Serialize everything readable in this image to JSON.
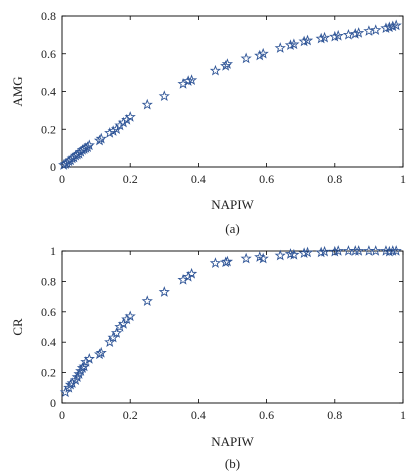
{
  "marker_color": "#2f5597",
  "chart_data": [
    {
      "type": "scatter",
      "marker": "star",
      "xlabel": "NAPIW",
      "ylabel": "AMG",
      "caption": "(a)",
      "xlim": [
        0,
        1
      ],
      "ylim": [
        0,
        0.8
      ],
      "xticks": [
        0,
        0.2,
        0.4,
        0.6,
        0.8,
        1
      ],
      "yticks": [
        0,
        0.2,
        0.4,
        0.6,
        0.8
      ],
      "xtick_labels": [
        "0",
        "0.2",
        "0.4",
        "0.6",
        "0.8",
        "1"
      ],
      "ytick_labels": [
        "0",
        "0.2",
        "0.4",
        "0.6",
        "0.8"
      ],
      "points": [
        [
          0.005,
          0.01
        ],
        [
          0.01,
          0.015
        ],
        [
          0.015,
          0.02
        ],
        [
          0.02,
          0.03
        ],
        [
          0.025,
          0.035
        ],
        [
          0.03,
          0.045
        ],
        [
          0.035,
          0.05
        ],
        [
          0.04,
          0.06
        ],
        [
          0.045,
          0.065
        ],
        [
          0.05,
          0.07
        ],
        [
          0.055,
          0.08
        ],
        [
          0.06,
          0.09
        ],
        [
          0.065,
          0.095
        ],
        [
          0.07,
          0.1
        ],
        [
          0.075,
          0.105
        ],
        [
          0.08,
          0.115
        ],
        [
          0.11,
          0.14
        ],
        [
          0.115,
          0.15
        ],
        [
          0.14,
          0.18
        ],
        [
          0.15,
          0.19
        ],
        [
          0.16,
          0.2
        ],
        [
          0.17,
          0.22
        ],
        [
          0.18,
          0.235
        ],
        [
          0.19,
          0.25
        ],
        [
          0.2,
          0.265
        ],
        [
          0.25,
          0.33
        ],
        [
          0.3,
          0.375
        ],
        [
          0.355,
          0.44
        ],
        [
          0.37,
          0.455
        ],
        [
          0.38,
          0.46
        ],
        [
          0.45,
          0.51
        ],
        [
          0.48,
          0.535
        ],
        [
          0.485,
          0.545
        ],
        [
          0.54,
          0.575
        ],
        [
          0.58,
          0.59
        ],
        [
          0.59,
          0.6
        ],
        [
          0.64,
          0.63
        ],
        [
          0.67,
          0.645
        ],
        [
          0.68,
          0.65
        ],
        [
          0.71,
          0.665
        ],
        [
          0.72,
          0.67
        ],
        [
          0.76,
          0.68
        ],
        [
          0.77,
          0.685
        ],
        [
          0.8,
          0.69
        ],
        [
          0.81,
          0.695
        ],
        [
          0.84,
          0.7
        ],
        [
          0.86,
          0.705
        ],
        [
          0.87,
          0.71
        ],
        [
          0.9,
          0.72
        ],
        [
          0.92,
          0.725
        ],
        [
          0.95,
          0.735
        ],
        [
          0.96,
          0.74
        ],
        [
          0.97,
          0.745
        ],
        [
          0.98,
          0.75
        ]
      ]
    },
    {
      "type": "scatter",
      "marker": "star",
      "xlabel": "NAPIW",
      "ylabel": "CR",
      "caption": "(b)",
      "xlim": [
        0,
        1
      ],
      "ylim": [
        0,
        1
      ],
      "xticks": [
        0,
        0.2,
        0.4,
        0.6,
        0.8,
        1
      ],
      "yticks": [
        0,
        0.2,
        0.4,
        0.6,
        0.8,
        1
      ],
      "xtick_labels": [
        "0",
        "0.2",
        "0.4",
        "0.6",
        "0.8",
        "1"
      ],
      "ytick_labels": [
        "0",
        "0.2",
        "0.4",
        "0.6",
        "0.8",
        "1"
      ],
      "points": [
        [
          0.01,
          0.07
        ],
        [
          0.02,
          0.1
        ],
        [
          0.025,
          0.12
        ],
        [
          0.03,
          0.13
        ],
        [
          0.04,
          0.15
        ],
        [
          0.045,
          0.17
        ],
        [
          0.05,
          0.19
        ],
        [
          0.055,
          0.21
        ],
        [
          0.06,
          0.23
        ],
        [
          0.065,
          0.24
        ],
        [
          0.07,
          0.27
        ],
        [
          0.08,
          0.29
        ],
        [
          0.11,
          0.32
        ],
        [
          0.115,
          0.33
        ],
        [
          0.14,
          0.4
        ],
        [
          0.15,
          0.43
        ],
        [
          0.16,
          0.46
        ],
        [
          0.17,
          0.5
        ],
        [
          0.18,
          0.52
        ],
        [
          0.19,
          0.55
        ],
        [
          0.2,
          0.57
        ],
        [
          0.25,
          0.67
        ],
        [
          0.3,
          0.73
        ],
        [
          0.355,
          0.81
        ],
        [
          0.37,
          0.83
        ],
        [
          0.38,
          0.85
        ],
        [
          0.45,
          0.92
        ],
        [
          0.48,
          0.925
        ],
        [
          0.485,
          0.93
        ],
        [
          0.54,
          0.95
        ],
        [
          0.58,
          0.96
        ],
        [
          0.59,
          0.95
        ],
        [
          0.64,
          0.97
        ],
        [
          0.67,
          0.98
        ],
        [
          0.68,
          0.975
        ],
        [
          0.71,
          0.985
        ],
        [
          0.72,
          0.99
        ],
        [
          0.76,
          0.99
        ],
        [
          0.77,
          0.995
        ],
        [
          0.8,
          0.995
        ],
        [
          0.81,
          1.0
        ],
        [
          0.84,
          1.0
        ],
        [
          0.86,
          1.0
        ],
        [
          0.87,
          1.0
        ],
        [
          0.9,
          1.0
        ],
        [
          0.92,
          1.0
        ],
        [
          0.95,
          1.0
        ],
        [
          0.96,
          0.995
        ],
        [
          0.97,
          1.0
        ],
        [
          0.98,
          1.0
        ]
      ]
    }
  ]
}
